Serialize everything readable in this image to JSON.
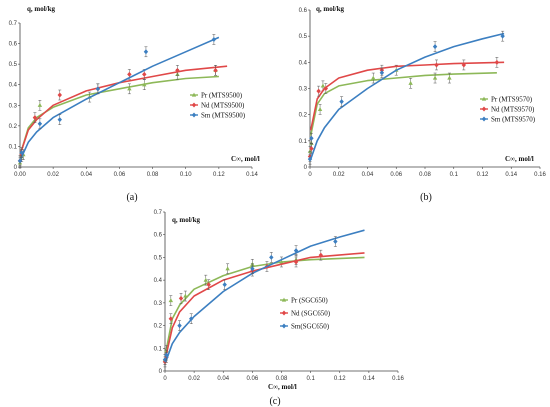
{
  "chart_data": [
    {
      "type": "scatter",
      "caption": "(a)",
      "xlabel": "C∞, mol/l",
      "ylabel": "q, mol/kg",
      "xlim": [
        0,
        0.14
      ],
      "ylim": [
        0,
        0.7
      ],
      "xticks": [
        "0.00",
        "0.02",
        "0.04",
        "0.06",
        "0.08",
        "0.10",
        "0.12",
        "0.14"
      ],
      "yticks": [
        "0",
        "0.1",
        "0.2",
        "0.3",
        "0.4",
        "0.5",
        "0.6",
        "0.7"
      ],
      "legend_position": "center-right",
      "series": [
        {
          "name": "Pr (MTS9500)",
          "color": "#8DB858",
          "marker": "triangle",
          "x": [
            0.0,
            0.001,
            0.002,
            0.012,
            0.042,
            0.066,
            0.075,
            0.095,
            0.118
          ],
          "y": [
            0.02,
            0.05,
            0.06,
            0.3,
            0.34,
            0.38,
            0.4,
            0.45,
            0.47
          ],
          "fit": [
            [
              0.0005,
              0.07
            ],
            [
              0.005,
              0.19
            ],
            [
              0.01,
              0.24
            ],
            [
              0.02,
              0.29
            ],
            [
              0.04,
              0.35
            ],
            [
              0.06,
              0.38
            ],
            [
              0.08,
              0.41
            ],
            [
              0.1,
              0.43
            ],
            [
              0.12,
              0.44
            ]
          ]
        },
        {
          "name": "Nd (MTS9500)",
          "color": "#E04848",
          "marker": "diamond",
          "x": [
            0.0,
            0.001,
            0.009,
            0.024,
            0.047,
            0.066,
            0.075,
            0.095,
            0.118
          ],
          "y": [
            0.03,
            0.06,
            0.24,
            0.35,
            0.38,
            0.45,
            0.45,
            0.47,
            0.47
          ],
          "fit": [
            [
              0.0005,
              0.07
            ],
            [
              0.005,
              0.18
            ],
            [
              0.01,
              0.23
            ],
            [
              0.02,
              0.3
            ],
            [
              0.04,
              0.37
            ],
            [
              0.06,
              0.41
            ],
            [
              0.08,
              0.44
            ],
            [
              0.1,
              0.47
            ],
            [
              0.125,
              0.49
            ]
          ]
        },
        {
          "name": "Sm (MTS9500)",
          "color": "#3C7FC1",
          "marker": "diamond",
          "x": [
            0.0,
            0.001,
            0.012,
            0.024,
            0.047,
            0.076,
            0.117
          ],
          "y": [
            0.03,
            0.07,
            0.21,
            0.23,
            0.38,
            0.56,
            0.62
          ],
          "fit": [
            [
              0.0005,
              0.04
            ],
            [
              0.005,
              0.12
            ],
            [
              0.01,
              0.17
            ],
            [
              0.02,
              0.24
            ],
            [
              0.04,
              0.33
            ],
            [
              0.06,
              0.41
            ],
            [
              0.08,
              0.49
            ],
            [
              0.1,
              0.56
            ],
            [
              0.12,
              0.63
            ]
          ]
        }
      ]
    },
    {
      "type": "scatter",
      "caption": "(b)",
      "xlabel": "C∞, mol/l",
      "ylabel": "q, mol/kg",
      "xlim": [
        0,
        0.16
      ],
      "ylim": [
        0,
        0.6
      ],
      "xticks": [
        "0",
        "0.02",
        "0.04",
        "0.06",
        "0.08",
        "0.1",
        "0.12",
        "0.14",
        "0.16"
      ],
      "yticks": [
        "0",
        "0.1",
        "0.2",
        "0.3",
        "0.4",
        "0.5",
        "0.6"
      ],
      "legend_position": "bottom-right",
      "series": [
        {
          "name": "Pr (MTS9570)",
          "color": "#8DB858",
          "marker": "triangle",
          "x": [
            0.0,
            0.001,
            0.007,
            0.009,
            0.044,
            0.06,
            0.07,
            0.087,
            0.097
          ],
          "y": [
            0.06,
            0.09,
            0.22,
            0.31,
            0.34,
            0.37,
            0.32,
            0.34,
            0.34
          ],
          "fit": [
            [
              0.0005,
              0.12
            ],
            [
              0.005,
              0.24
            ],
            [
              0.01,
              0.28
            ],
            [
              0.02,
              0.31
            ],
            [
              0.04,
              0.33
            ],
            [
              0.06,
              0.34
            ],
            [
              0.08,
              0.35
            ],
            [
              0.1,
              0.355
            ],
            [
              0.13,
              0.36
            ]
          ]
        },
        {
          "name": "Nd (MTS9570)",
          "color": "#E04848",
          "marker": "diamond",
          "x": [
            0.0,
            0.001,
            0.006,
            0.011,
            0.05,
            0.088,
            0.107,
            0.13
          ],
          "y": [
            0.04,
            0.07,
            0.29,
            0.3,
            0.37,
            0.39,
            0.39,
            0.4
          ],
          "fit": [
            [
              0.0005,
              0.14
            ],
            [
              0.005,
              0.26
            ],
            [
              0.01,
              0.3
            ],
            [
              0.02,
              0.34
            ],
            [
              0.04,
              0.37
            ],
            [
              0.06,
              0.385
            ],
            [
              0.08,
              0.39
            ],
            [
              0.1,
              0.395
            ],
            [
              0.135,
              0.4
            ]
          ]
        },
        {
          "name": "Sm (MTS9570)",
          "color": "#3C7FC1",
          "marker": "diamond",
          "x": [
            0.0,
            0.001,
            0.022,
            0.05,
            0.087,
            0.134
          ],
          "y": [
            0.03,
            0.11,
            0.25,
            0.36,
            0.46,
            0.5
          ],
          "fit": [
            [
              0.0005,
              0.03
            ],
            [
              0.005,
              0.1
            ],
            [
              0.01,
              0.15
            ],
            [
              0.02,
              0.22
            ],
            [
              0.04,
              0.3
            ],
            [
              0.06,
              0.37
            ],
            [
              0.08,
              0.42
            ],
            [
              0.1,
              0.46
            ],
            [
              0.12,
              0.49
            ],
            [
              0.135,
              0.51
            ]
          ]
        }
      ]
    },
    {
      "type": "scatter",
      "caption": "(c)",
      "xlabel": "C∞, mol/l",
      "ylabel": "q, mol/kg",
      "xlim": [
        0,
        0.16
      ],
      "ylim": [
        0,
        0.7
      ],
      "xticks": [
        "0",
        "0.02",
        "0.04",
        "0.06",
        "0.08",
        "0.1",
        "0.12",
        "0.14",
        "0.16"
      ],
      "yticks": [
        "0",
        "0.1",
        "0.2",
        "0.3",
        "0.4",
        "0.5",
        "0.6",
        "0.7"
      ],
      "legend_position": "center-right",
      "series": [
        {
          "name": "Pr (SGC650)",
          "color": "#8DB858",
          "marker": "triangle",
          "x": [
            0.0,
            0.001,
            0.004,
            0.014,
            0.028,
            0.043,
            0.06,
            0.08,
            0.09
          ],
          "y": [
            0.05,
            0.09,
            0.31,
            0.33,
            0.4,
            0.45,
            0.47,
            0.48,
            0.49
          ],
          "fit": [
            [
              0.0005,
              0.08
            ],
            [
              0.005,
              0.23
            ],
            [
              0.01,
              0.29
            ],
            [
              0.02,
              0.36
            ],
            [
              0.04,
              0.42
            ],
            [
              0.06,
              0.46
            ],
            [
              0.08,
              0.48
            ],
            [
              0.1,
              0.49
            ],
            [
              0.137,
              0.5
            ]
          ]
        },
        {
          "name": "Nd (SGC650)",
          "color": "#E04848",
          "marker": "diamond",
          "x": [
            0.0,
            0.001,
            0.004,
            0.011,
            0.03,
            0.06,
            0.07,
            0.09,
            0.107
          ],
          "y": [
            0.04,
            0.06,
            0.23,
            0.32,
            0.38,
            0.44,
            0.46,
            0.48,
            0.51
          ],
          "fit": [
            [
              0.0005,
              0.06
            ],
            [
              0.005,
              0.19
            ],
            [
              0.01,
              0.26
            ],
            [
              0.02,
              0.33
            ],
            [
              0.04,
              0.4
            ],
            [
              0.06,
              0.44
            ],
            [
              0.08,
              0.47
            ],
            [
              0.1,
              0.5
            ],
            [
              0.137,
              0.52
            ]
          ]
        },
        {
          "name": "Sm(SGC650)",
          "color": "#3C7FC1",
          "marker": "diamond",
          "x": [
            0.0,
            0.001,
            0.01,
            0.018,
            0.041,
            0.06,
            0.073,
            0.09,
            0.117
          ],
          "y": [
            0.05,
            0.07,
            0.2,
            0.23,
            0.38,
            0.45,
            0.5,
            0.53,
            0.57
          ],
          "fit": [
            [
              0.0005,
              0.04
            ],
            [
              0.005,
              0.12
            ],
            [
              0.01,
              0.17
            ],
            [
              0.02,
              0.24
            ],
            [
              0.04,
              0.35
            ],
            [
              0.06,
              0.43
            ],
            [
              0.08,
              0.49
            ],
            [
              0.1,
              0.55
            ],
            [
              0.12,
              0.59
            ],
            [
              0.137,
              0.62
            ]
          ]
        }
      ]
    }
  ]
}
